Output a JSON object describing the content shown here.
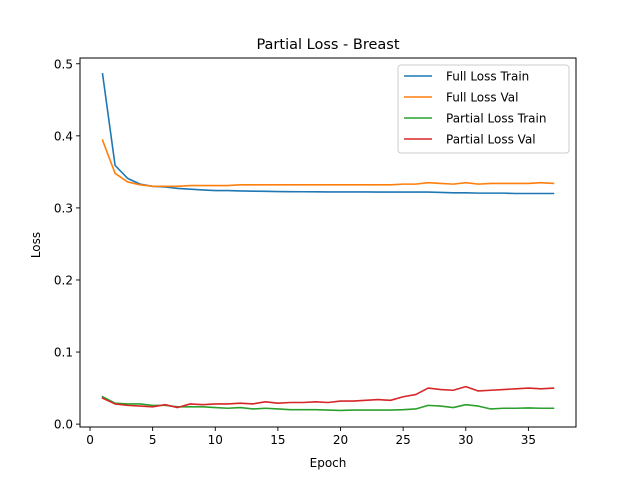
{
  "chart_data": {
    "type": "line",
    "title": "Partial Loss - Breast",
    "xlabel": "Epoch",
    "ylabel": "Loss",
    "xlim": [
      -0.8,
      38.8
    ],
    "ylim": [
      -0.004,
      0.508
    ],
    "x_ticks": [
      0,
      5,
      10,
      15,
      20,
      25,
      30,
      35
    ],
    "y_ticks": [
      0.0,
      0.1,
      0.2,
      0.3,
      0.4,
      0.5
    ],
    "x_tick_labels": [
      "0",
      "5",
      "10",
      "15",
      "20",
      "25",
      "30",
      "35"
    ],
    "y_tick_labels": [
      "0.0",
      "0.1",
      "0.2",
      "0.3",
      "0.4",
      "0.5"
    ],
    "grid": false,
    "legend_position": "top-right",
    "x": [
      1,
      2,
      3,
      4,
      5,
      6,
      7,
      8,
      9,
      10,
      11,
      12,
      13,
      14,
      15,
      16,
      17,
      18,
      19,
      20,
      21,
      22,
      23,
      24,
      25,
      26,
      27,
      28,
      29,
      30,
      31,
      32,
      33,
      34,
      35,
      36,
      37
    ],
    "series": [
      {
        "name": "Full Loss Train",
        "color": "#1f77b4",
        "values": [
          0.486,
          0.359,
          0.341,
          0.333,
          0.33,
          0.329,
          0.327,
          0.326,
          0.325,
          0.324,
          0.324,
          0.3235,
          0.3232,
          0.323,
          0.3227,
          0.3225,
          0.3224,
          0.3223,
          0.3222,
          0.3222,
          0.3221,
          0.3221,
          0.322,
          0.322,
          0.322,
          0.322,
          0.322,
          0.3215,
          0.321,
          0.321,
          0.3205,
          0.3205,
          0.3205,
          0.32,
          0.32,
          0.32,
          0.32
        ]
      },
      {
        "name": "Full Loss Val",
        "color": "#ff7f0e",
        "values": [
          0.394,
          0.348,
          0.336,
          0.332,
          0.33,
          0.33,
          0.33,
          0.331,
          0.331,
          0.331,
          0.331,
          0.332,
          0.332,
          0.332,
          0.332,
          0.332,
          0.332,
          0.332,
          0.332,
          0.332,
          0.332,
          0.332,
          0.332,
          0.332,
          0.333,
          0.333,
          0.335,
          0.334,
          0.333,
          0.335,
          0.333,
          0.334,
          0.334,
          0.334,
          0.334,
          0.335,
          0.334
        ]
      },
      {
        "name": "Partial Loss Train",
        "color": "#2ca02c",
        "values": [
          0.038,
          0.029,
          0.028,
          0.028,
          0.026,
          0.026,
          0.024,
          0.024,
          0.024,
          0.023,
          0.022,
          0.023,
          0.021,
          0.022,
          0.021,
          0.02,
          0.02,
          0.02,
          0.0195,
          0.019,
          0.0195,
          0.0195,
          0.0195,
          0.0195,
          0.02,
          0.021,
          0.026,
          0.025,
          0.023,
          0.027,
          0.025,
          0.021,
          0.022,
          0.022,
          0.0225,
          0.022,
          0.022
        ]
      },
      {
        "name": "Partial Loss Val",
        "color": "#d62728",
        "values": [
          0.036,
          0.028,
          0.026,
          0.025,
          0.024,
          0.027,
          0.023,
          0.028,
          0.027,
          0.028,
          0.028,
          0.029,
          0.028,
          0.031,
          0.029,
          0.03,
          0.03,
          0.031,
          0.03,
          0.032,
          0.032,
          0.033,
          0.034,
          0.033,
          0.038,
          0.041,
          0.05,
          0.048,
          0.047,
          0.052,
          0.046,
          0.047,
          0.048,
          0.049,
          0.05,
          0.049,
          0.05
        ]
      }
    ]
  }
}
